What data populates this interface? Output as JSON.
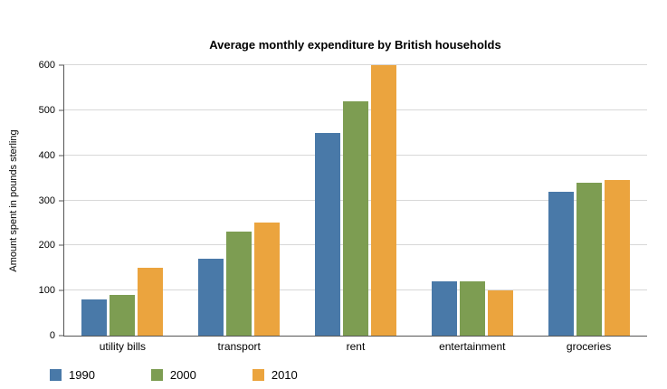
{
  "chart_data": {
    "type": "bar",
    "title": "Average monthly expenditure by British households",
    "xlabel": "",
    "ylabel": "Amount spent in pounds sterling",
    "ylim": [
      0,
      600
    ],
    "yticks": [
      0,
      100,
      200,
      300,
      400,
      500,
      600
    ],
    "grid": true,
    "legend_position": "bottom-left",
    "categories": [
      "utility bills",
      "transport",
      "rent",
      "entertainment",
      "groceries"
    ],
    "series": [
      {
        "name": "1990",
        "color": "#4979a8",
        "values": [
          80,
          170,
          450,
          120,
          320
        ]
      },
      {
        "name": "2000",
        "color": "#7d9d52",
        "values": [
          90,
          230,
          520,
          120,
          340
        ]
      },
      {
        "name": "2010",
        "color": "#eba43e",
        "values": [
          150,
          250,
          600,
          100,
          345
        ]
      }
    ]
  }
}
